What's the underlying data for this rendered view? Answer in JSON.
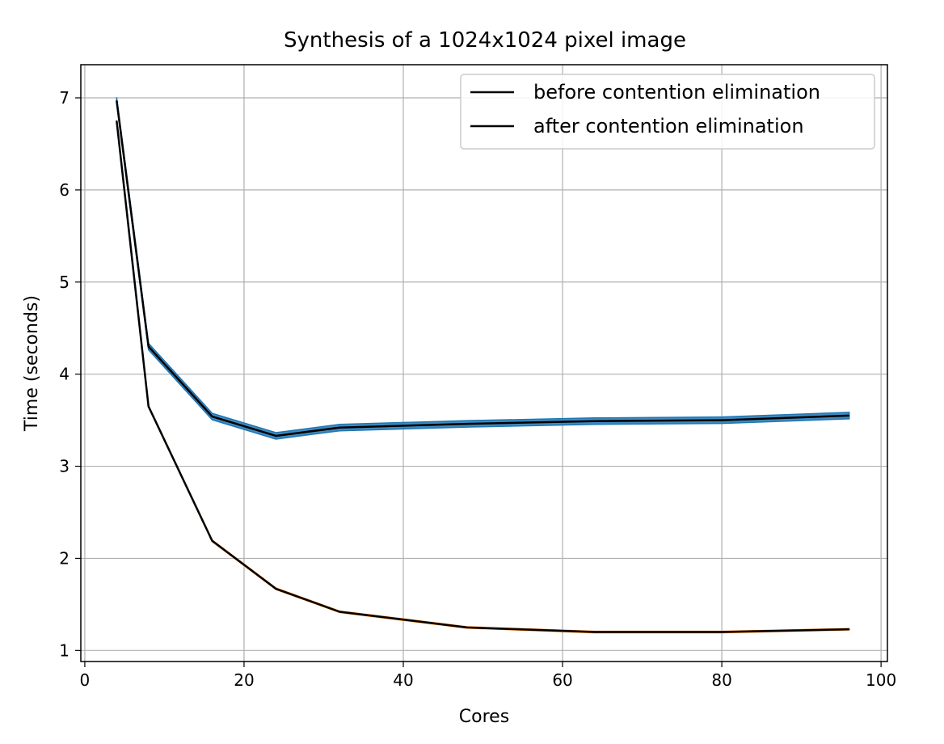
{
  "chart_data": {
    "type": "line",
    "title": "Synthesis of a 1024x1024 pixel image",
    "xlabel": "Cores",
    "ylabel": "Time (seconds)",
    "xlim": [
      -0.5,
      100.8
    ],
    "ylim": [
      0.88,
      7.36
    ],
    "xticks": [
      0,
      20,
      40,
      60,
      80,
      100
    ],
    "yticks": [
      1,
      2,
      3,
      4,
      5,
      6,
      7
    ],
    "grid": true,
    "legend_position": "top-right",
    "series": [
      {
        "name": "before contention elimination",
        "line_color": "#000000",
        "band_color": "#1f77b4",
        "band_halfwidth": 0.035,
        "x": [
          4,
          8,
          16,
          24,
          32,
          48,
          64,
          80,
          96
        ],
        "y": [
          6.97,
          4.3,
          3.54,
          3.33,
          3.42,
          3.46,
          3.49,
          3.5,
          3.55
        ]
      },
      {
        "name": "after contention elimination",
        "line_color": "#000000",
        "band_color": "#ff7f0e",
        "band_halfwidth": 0.008,
        "x": [
          4,
          8,
          16,
          24,
          32,
          48,
          64,
          80,
          96
        ],
        "y": [
          6.75,
          3.65,
          2.19,
          1.67,
          1.42,
          1.25,
          1.2,
          1.2,
          1.23
        ]
      }
    ]
  }
}
